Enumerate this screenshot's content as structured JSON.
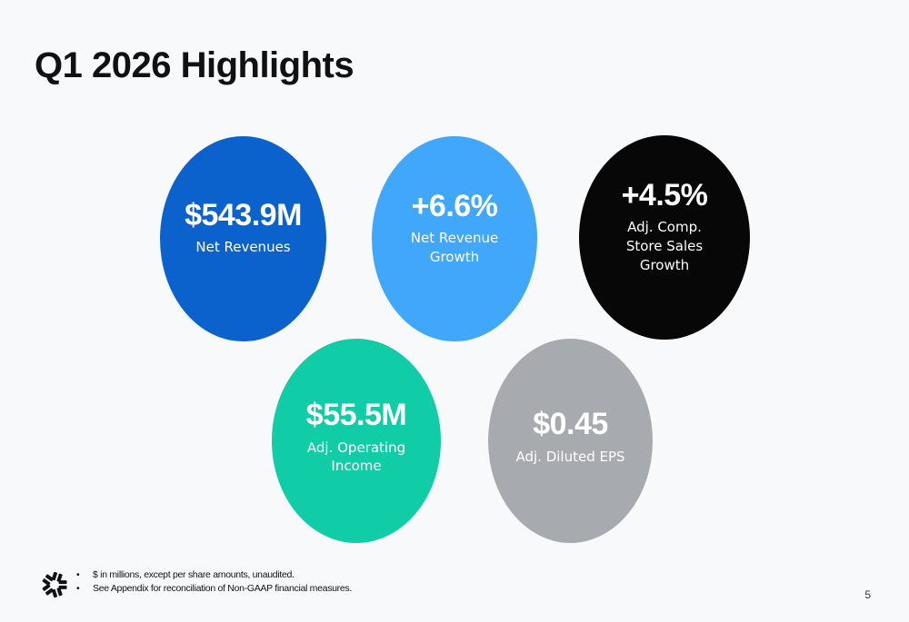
{
  "slide": {
    "title": "Q1 2026 Highlights",
    "page_number": "5"
  },
  "highlights": [
    {
      "value": "$543.9M",
      "label": "Net Revenues",
      "color": "#0b62cc"
    },
    {
      "value": "+6.6%",
      "label": "Net Revenue\nGrowth",
      "color": "#41a7fa"
    },
    {
      "value": "+4.5%",
      "label": "Adj. Comp.\nStore Sales\nGrowth",
      "color": "#070707"
    },
    {
      "value": "$55.5M",
      "label": "Adj. Operating\nIncome",
      "color": "#10cca7"
    },
    {
      "value": "$0.45",
      "label": "Adj. Diluted EPS",
      "color": "#a7aaae"
    }
  ],
  "footnotes": [
    "$ in millions, except per share amounts, unaudited.",
    "See Appendix for reconciliation of Non-GAAP financial measures."
  ],
  "logo": {
    "icon": "starburst-logo-icon",
    "color": "#111111"
  }
}
